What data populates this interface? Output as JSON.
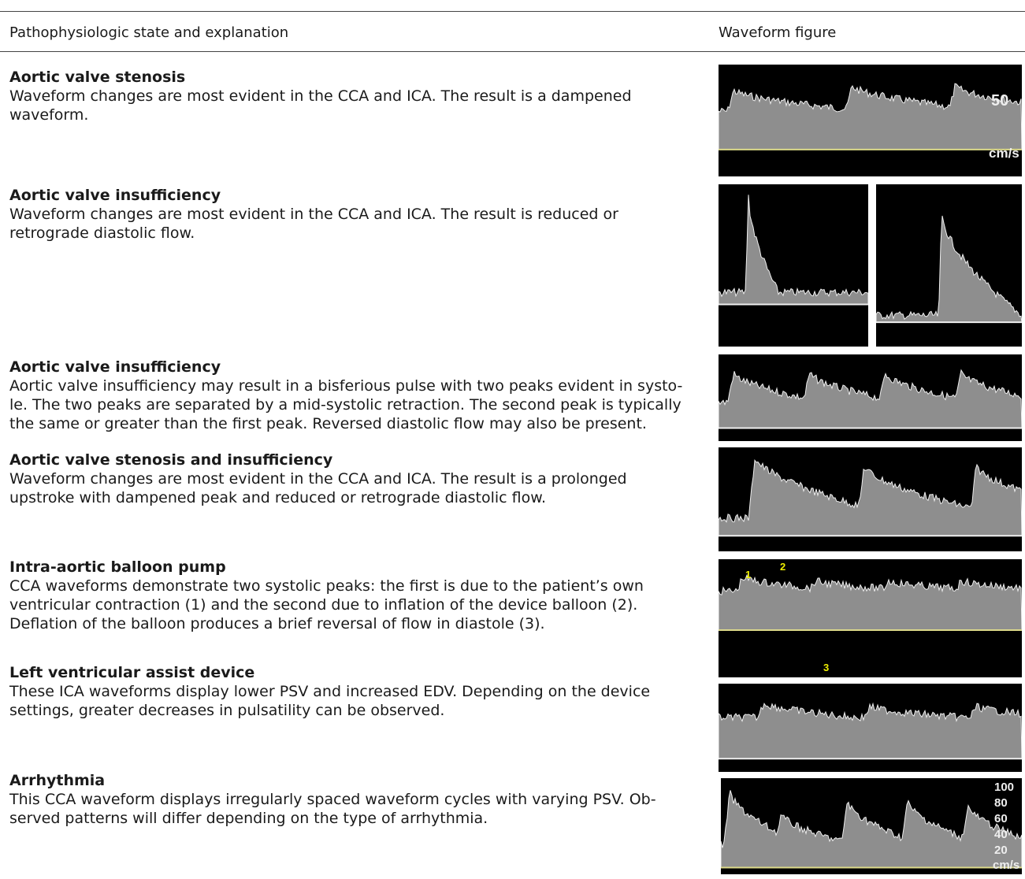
{
  "header": {
    "col1": "Pathophysiologic state and explanation",
    "col2": "Waveform figure"
  },
  "rows": [
    {
      "title": "Aortic valve stenosis",
      "lines": [
        "Waveform changes are most evident in the CCA and ICA. The result is a dampened",
        "waveform."
      ],
      "figure_labels": [
        "50",
        "cm/s"
      ]
    },
    {
      "title": "Aortic valve insufficiency",
      "lines": [
        "Waveform changes are most evident in the CCA and ICA. The result is reduced or",
        "retrograde diastolic flow."
      ]
    },
    {
      "title": "Aortic valve insufficiency",
      "lines": [
        "Aortic valve insufficiency may result in a bisferious pulse with two peaks evident in systo-",
        "le. The two peaks are separated by a mid-systolic retraction. The second peak is typically",
        "the same or greater than the first peak. Reversed diastolic flow may also be present."
      ]
    },
    {
      "title": "Aortic valve stenosis and insufficiency",
      "lines": [
        "Waveform changes are most evident in the CCA and ICA. The result is a prolonged",
        "upstroke with dampened peak and reduced or retrograde diastolic flow."
      ]
    },
    {
      "title": "Intra-aortic balloon pump",
      "lines": [
        "CCA waveforms demonstrate two systolic peaks: the first is due to the patient’s own",
        "ventricular contraction (1) and the second due to inflation of the device balloon (2).",
        "Deflation of the balloon produces a brief reversal of flow in diastole (3)."
      ],
      "figure_labels": [
        "1",
        "2",
        "3"
      ]
    },
    {
      "title": "Left ventricular assist device",
      "lines": [
        "These ICA waveforms display lower PSV and increased EDV. Depending on the device",
        "settings, greater decreases in pulsatility can be observed."
      ]
    },
    {
      "title": "Arrhythmia",
      "lines": [
        "This CCA waveform displays irregularly spaced waveform cycles with varying PSV. Ob-",
        "served patterns will differ depending on the type of arrhythmia."
      ],
      "figure_labels": [
        "100",
        "80",
        "60",
        "40",
        "20",
        "cm/s"
      ]
    }
  ]
}
